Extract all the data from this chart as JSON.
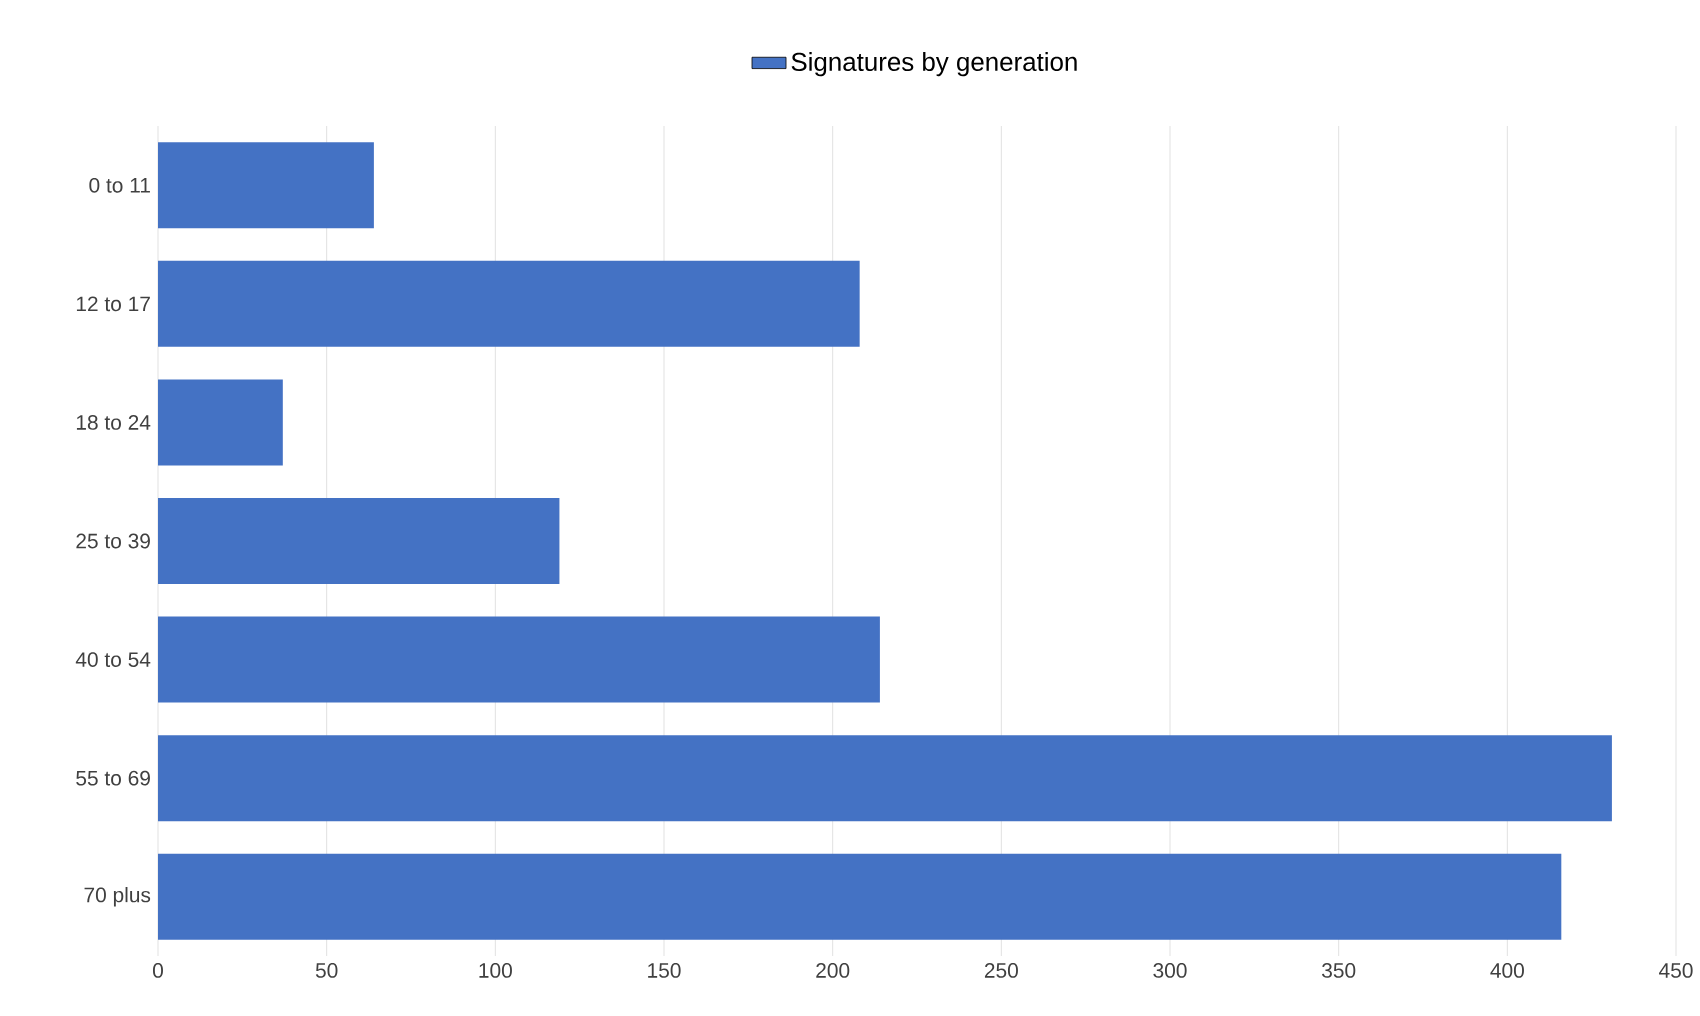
{
  "chart_data": {
    "type": "bar",
    "orientation": "horizontal",
    "categories": [
      "0 to 11",
      "12 to 17",
      "18 to 24",
      "25 to 39",
      "40 to 54",
      "55 to 69",
      "70 plus"
    ],
    "series": [
      {
        "name": "Signatures by generation",
        "color": "#4472c4",
        "values": [
          64,
          208,
          37,
          119,
          214,
          431,
          416
        ]
      }
    ],
    "xlim": [
      0,
      450
    ],
    "xticks": [
      0,
      50,
      100,
      150,
      200,
      250,
      300,
      350,
      400,
      450
    ],
    "grid": "x",
    "legend": "top"
  }
}
